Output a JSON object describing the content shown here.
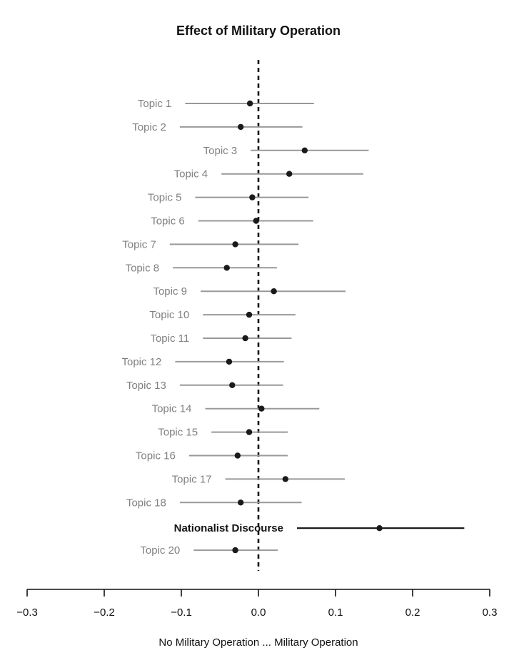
{
  "chart_data": {
    "type": "scatter",
    "subtype": "coefficient-plot",
    "title": "Effect of Military Operation",
    "xlabel": "No Military Operation ... Military Operation",
    "ylabel": "",
    "xlim": [
      -0.3,
      0.3
    ],
    "xticks": [
      -0.3,
      -0.2,
      -0.1,
      0.0,
      0.1,
      0.2,
      0.3
    ],
    "xtick_labels": [
      "−0.3",
      "−0.2",
      "−0.1",
      "0.0",
      "0.1",
      "0.2",
      "0.3"
    ],
    "reference_line": {
      "x": 0.0,
      "style": "dashed"
    },
    "grid": false,
    "legend": "none",
    "colors": {
      "default_interval": "#999999",
      "highlight_interval": "#111111",
      "point": "#1a1a1a"
    },
    "series": [
      {
        "label": "Topic 1",
        "estimate": -0.011,
        "lower": -0.095,
        "upper": 0.072,
        "highlight": false
      },
      {
        "label": "Topic 2",
        "estimate": -0.023,
        "lower": -0.102,
        "upper": 0.057,
        "highlight": false
      },
      {
        "label": "Topic 3",
        "estimate": 0.06,
        "lower": -0.01,
        "upper": 0.143,
        "highlight": false
      },
      {
        "label": "Topic 4",
        "estimate": 0.04,
        "lower": -0.048,
        "upper": 0.136,
        "highlight": false
      },
      {
        "label": "Topic 5",
        "estimate": -0.008,
        "lower": -0.082,
        "upper": 0.065,
        "highlight": false
      },
      {
        "label": "Topic 6",
        "estimate": -0.003,
        "lower": -0.078,
        "upper": 0.071,
        "highlight": false
      },
      {
        "label": "Topic 7",
        "estimate": -0.03,
        "lower": -0.115,
        "upper": 0.052,
        "highlight": false
      },
      {
        "label": "Topic 8",
        "estimate": -0.041,
        "lower": -0.111,
        "upper": 0.024,
        "highlight": false
      },
      {
        "label": "Topic 9",
        "estimate": 0.02,
        "lower": -0.075,
        "upper": 0.113,
        "highlight": false
      },
      {
        "label": "Topic 10",
        "estimate": -0.012,
        "lower": -0.072,
        "upper": 0.048,
        "highlight": false
      },
      {
        "label": "Topic 11",
        "estimate": -0.017,
        "lower": -0.072,
        "upper": 0.043,
        "highlight": false
      },
      {
        "label": "Topic 12",
        "estimate": -0.038,
        "lower": -0.108,
        "upper": 0.033,
        "highlight": false
      },
      {
        "label": "Topic 13",
        "estimate": -0.034,
        "lower": -0.102,
        "upper": 0.032,
        "highlight": false
      },
      {
        "label": "Topic 14",
        "estimate": 0.004,
        "lower": -0.069,
        "upper": 0.079,
        "highlight": false
      },
      {
        "label": "Topic 15",
        "estimate": -0.012,
        "lower": -0.061,
        "upper": 0.038,
        "highlight": false
      },
      {
        "label": "Topic 16",
        "estimate": -0.027,
        "lower": -0.09,
        "upper": 0.038,
        "highlight": false
      },
      {
        "label": "Topic 17",
        "estimate": 0.035,
        "lower": -0.043,
        "upper": 0.112,
        "highlight": false
      },
      {
        "label": "Topic 18",
        "estimate": -0.023,
        "lower": -0.102,
        "upper": 0.056,
        "highlight": false
      },
      {
        "label": "Nationalist Discourse",
        "estimate": 0.157,
        "lower": 0.05,
        "upper": 0.267,
        "highlight": true
      },
      {
        "label": "Topic 20",
        "estimate": -0.03,
        "lower": -0.084,
        "upper": 0.025,
        "highlight": false
      }
    ]
  }
}
